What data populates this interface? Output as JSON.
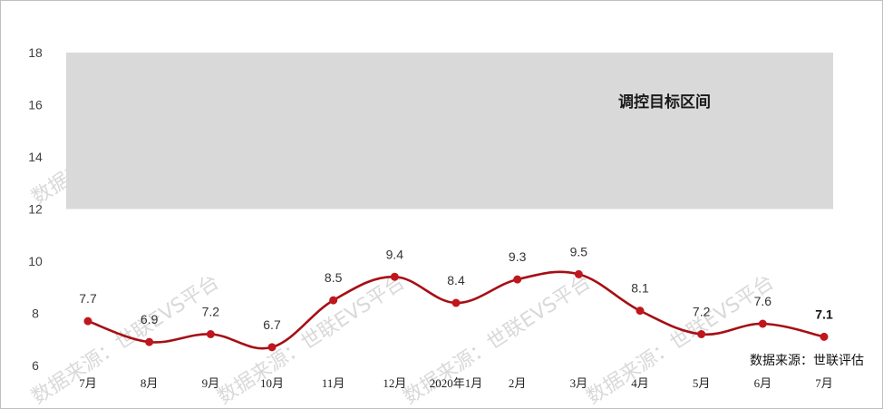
{
  "chart_data": {
    "type": "line",
    "title": "",
    "xlabel": "",
    "ylabel": "",
    "ylim": [
      6,
      18
    ],
    "yticks": [
      6,
      8,
      10,
      12,
      14,
      16,
      18
    ],
    "categories": [
      "7月",
      "8月",
      "9月",
      "10月",
      "11月",
      "12月",
      "2020年1月",
      "2月",
      "3月",
      "4月",
      "5月",
      "6月",
      "7月"
    ],
    "series": [
      {
        "values": [
          7.7,
          6.9,
          7.2,
          6.7,
          8.5,
          9.4,
          8.4,
          9.3,
          9.5,
          8.1,
          7.2,
          7.6,
          7.1
        ],
        "color": "#a60f15",
        "marker_color": "#c0161d"
      }
    ],
    "band": {
      "from": 12,
      "to": 18,
      "label": "调控目标区间",
      "color": "#d9d9d9"
    },
    "grid": false,
    "source": "数据来源：世联评估"
  },
  "watermark": "数据来源：世联EVS平台"
}
